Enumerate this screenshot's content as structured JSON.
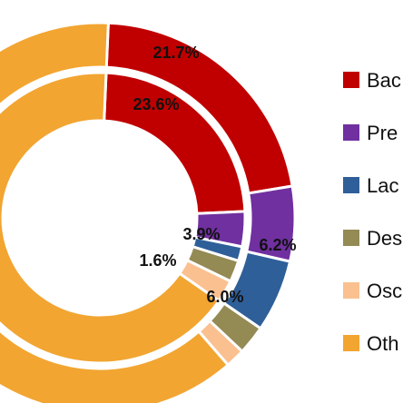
{
  "chart_data": [
    {
      "type": "pie",
      "variant": "donut-outer-ring",
      "series": [
        {
          "name": "Bac",
          "value": 21.7,
          "color": "#c00000",
          "label": "21.7%"
        },
        {
          "name": "Pre",
          "value": 6.2,
          "color": "#7030a0",
          "label": "6.2%"
        },
        {
          "name": "Lac",
          "value": 6.0,
          "color": "#2f5f98",
          "label": "6.0%"
        },
        {
          "name": "Des",
          "value": 2.4,
          "color": "#948a54",
          "label": ""
        },
        {
          "name": "Osc",
          "value": 1.6,
          "color": "#fac090",
          "label": ""
        },
        {
          "name": "Oth",
          "value": 62.1,
          "color": "#f2a531",
          "label": ""
        }
      ]
    },
    {
      "type": "pie",
      "variant": "donut-inner-ring",
      "series": [
        {
          "name": "Bac",
          "value": 23.6,
          "color": "#c00000",
          "label": "23.6%"
        },
        {
          "name": "Pre",
          "value": 3.9,
          "color": "#7030a0",
          "label": "3.9%"
        },
        {
          "name": "Lac",
          "value": 1.6,
          "color": "#2f5f98",
          "label": "1.6%"
        },
        {
          "name": "Des",
          "value": 2.4,
          "color": "#948a54",
          "label": ""
        },
        {
          "name": "Osc",
          "value": 2.5,
          "color": "#fac090",
          "label": ""
        },
        {
          "name": "Oth",
          "value": 66.0,
          "color": "#f2a531",
          "label": ""
        }
      ]
    }
  ],
  "legend": {
    "placement": "right",
    "items": [
      {
        "label": "Bac",
        "color": "#c00000"
      },
      {
        "label": "Pre",
        "color": "#7030a0"
      },
      {
        "label": "Lac",
        "color": "#2f5f98"
      },
      {
        "label": "Des",
        "color": "#948a54"
      },
      {
        "label": "Osc",
        "color": "#fac090"
      },
      {
        "label": "Oth",
        "color": "#f2a531"
      }
    ]
  }
}
